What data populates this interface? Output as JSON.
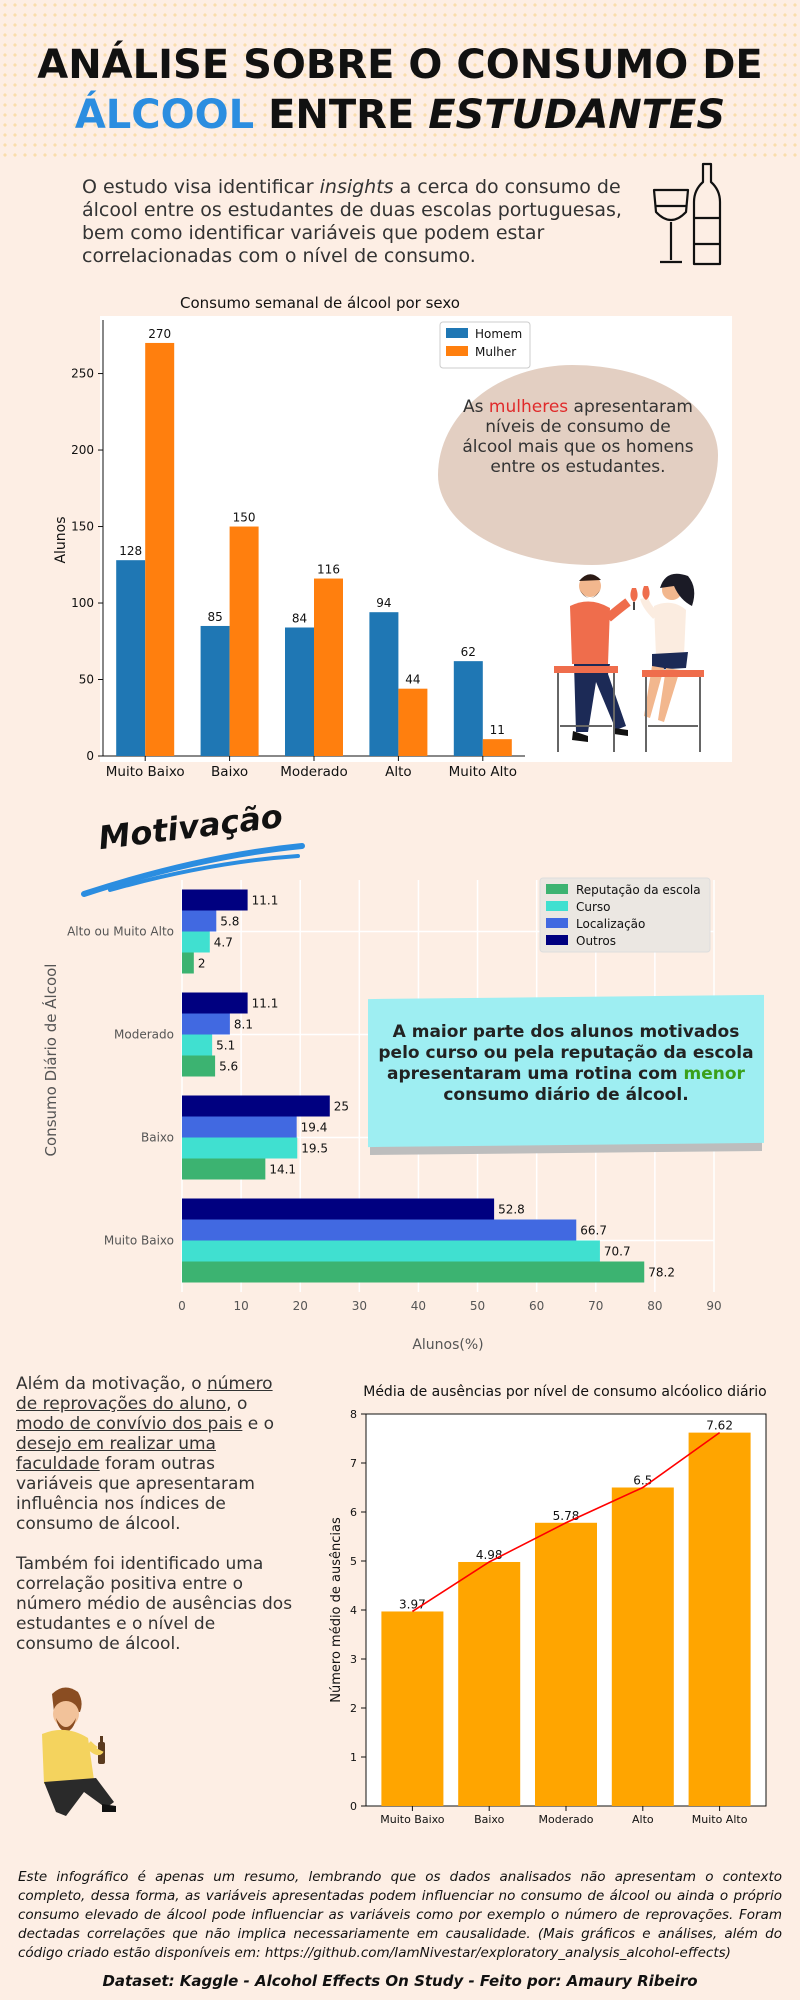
{
  "header": {
    "title_line1": "ANÁLISE SOBRE O CONSUMO DE",
    "title_highlight": "ÁLCOOL",
    "title_entre": "ENTRE",
    "title_estudantes": "ESTUDANTES",
    "accent_color": "#2b8de0"
  },
  "intro": {
    "before": "O estudo visa identificar ",
    "emph": "insights",
    "after": " a cerca do consumo de álcool entre os estudantes de duas escolas portuguesas, bem como identificar variáveis que podem estar correlacionadas com o nível de consumo.",
    "icon": "wine-glass-bottle-icon"
  },
  "bubble": {
    "before": "As ",
    "highlight": "mulheres",
    "after": " apresentaram níveis de consumo de álcool mais que os homens entre os estudantes."
  },
  "motivacao_label": "Motivação",
  "cyan_note": {
    "before": "A maior parte dos alunos motivados pelo curso ou pela reputação da escola apresentaram uma rotina com ",
    "highlight": "menor",
    "after": " consumo diário de álcool."
  },
  "side": {
    "p1_a": "Além da motivação, o ",
    "p1_u1": "número de reprovações do aluno",
    "p1_b": ", o ",
    "p1_u2": "modo de convívio dos pais",
    "p1_c": " e o ",
    "p1_u3": "desejo em realizar uma faculdade",
    "p1_d": " foram outras variáveis que apresentaram influência nos índices de consumo de álcool.",
    "p2": "Também foi identificado uma correlação positiva entre o número médio de ausências dos estudantes e o nível de consumo de álcool."
  },
  "footnote": "Este infográfico é apenas um resumo, lembrando que os dados analisados não apresentam o contexto completo, dessa forma, as variáveis apresentadas podem influenciar no consumo de álcool ou ainda o próprio consumo elevado de álcool pode influenciar as variáveis como por exemplo o número de reprovações. Foram dectadas correlações que não implica necessariamente em causalidade. (Mais gráficos e análises, além do código criado estão disponíveis em: https://github.com/IamNivestar/exploratory_analysis_alcohol-effects)",
  "credits": "Dataset: Kaggle - Alcohol Effects On Study -  Feito por: Amaury Ribeiro",
  "chart_data": [
    {
      "type": "bar",
      "title": "Consumo semanal de álcool por sexo",
      "xlabel": "",
      "ylabel": "Alunos",
      "categories": [
        "Muito Baixo",
        "Baixo",
        "Moderado",
        "Alto",
        "Muito Alto"
      ],
      "series": [
        {
          "name": "Homem",
          "color": "#1f77b4",
          "values": [
            128,
            85,
            84,
            94,
            62
          ]
        },
        {
          "name": "Mulher",
          "color": "#ff7f0e",
          "values": [
            270,
            150,
            116,
            44,
            11
          ]
        }
      ],
      "ylim": [
        0,
        285
      ],
      "yticks": [
        0,
        50,
        100,
        150,
        200,
        250
      ],
      "legend": "top-center",
      "grid": false
    },
    {
      "type": "bar",
      "orientation": "horizontal",
      "title": "",
      "xlabel": "Alunos(%)",
      "ylabel": "Consumo Diário de Álcool",
      "categories": [
        "Alto ou Muito Alto",
        "Moderado",
        "Baixo",
        "Muito Baixo"
      ],
      "series": [
        {
          "name": "Reputação da escola",
          "color": "#3cb371",
          "values": [
            2,
            5.6,
            14.1,
            78.2
          ]
        },
        {
          "name": "Curso",
          "color": "#40e0d0",
          "values": [
            4.7,
            5.1,
            19.5,
            70.7
          ]
        },
        {
          "name": "Localização",
          "color": "#4169e1",
          "values": [
            5.8,
            8.1,
            19.4,
            66.7
          ]
        },
        {
          "name": "Outros",
          "color": "#000080",
          "values": [
            11.1,
            11.1,
            25,
            52.8
          ]
        }
      ],
      "xlim": [
        0,
        90
      ],
      "xticks": [
        0,
        10,
        20,
        30,
        40,
        50,
        60,
        70,
        80,
        90
      ],
      "legend": "top-right",
      "grid": true
    },
    {
      "type": "bar",
      "title": "Média de ausências por nível de consumo alcóolico diário",
      "xlabel": "",
      "ylabel": "Número médio de ausências",
      "categories": [
        "Muito Baixo",
        "Baixo",
        "Moderado",
        "Alto",
        "Muito Alto"
      ],
      "values": [
        3.97,
        4.98,
        5.78,
        6.5,
        7.62
      ],
      "bar_color": "#ffa500",
      "trend_line_color": "#ff0000",
      "ylim": [
        0,
        8
      ],
      "yticks": [
        0,
        1,
        2,
        3,
        4,
        5,
        6,
        7,
        8
      ],
      "grid": false
    }
  ]
}
